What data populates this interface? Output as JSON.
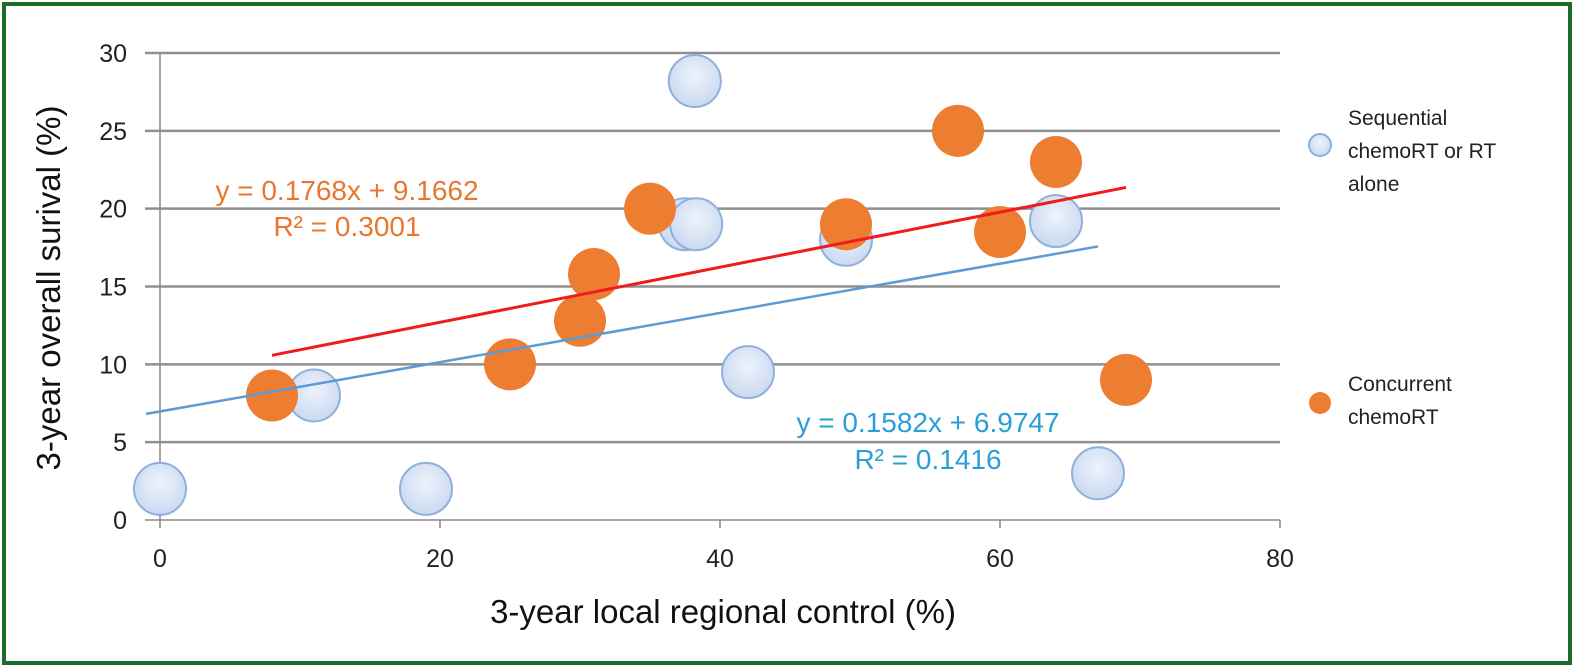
{
  "chart_data": {
    "type": "scatter",
    "xlabel": "3-year local regional control (%)",
    "ylabel": "3-year overall surival (%)",
    "xlim": [
      0,
      80
    ],
    "ylim": [
      0,
      30
    ],
    "x_ticks": [
      "0",
      "20",
      "40",
      "60",
      "80"
    ],
    "y_ticks": [
      "0",
      "5",
      "10",
      "15",
      "20",
      "25",
      "30"
    ],
    "grid": "horizontal",
    "legend_position": "right",
    "series": [
      {
        "name": "Sequential chemoRT or RT alone",
        "legend_lines": [
          "Sequential",
          "chemoRT or RT",
          "alone"
        ],
        "color": "#c9d9f0",
        "edge_color": "#8fb0dc",
        "points": [
          {
            "x": 0,
            "y": 2
          },
          {
            "x": 11,
            "y": 8
          },
          {
            "x": 19,
            "y": 2
          },
          {
            "x": 37.5,
            "y": 19
          },
          {
            "x": 38.2,
            "y": 28.2
          },
          {
            "x": 38.3,
            "y": 19
          },
          {
            "x": 42,
            "y": 9.5
          },
          {
            "x": 49,
            "y": 18
          },
          {
            "x": 64,
            "y": 19.2
          },
          {
            "x": 67,
            "y": 3
          }
        ],
        "trendline": {
          "slope": 0.1582,
          "intercept": 6.9747,
          "x_range": [
            -1,
            67
          ],
          "color": "#5b9bd5",
          "equation": "y = 0.1582x + 6.9747",
          "r_squared": "R² = 0.1416",
          "label_color": "#2a9fd6"
        }
      },
      {
        "name": "Concurrent chemoRT",
        "legend_lines": [
          "Concurrent",
          "chemoRT"
        ],
        "color": "#ed7d31",
        "points": [
          {
            "x": 8,
            "y": 8
          },
          {
            "x": 25,
            "y": 10
          },
          {
            "x": 30,
            "y": 12.8
          },
          {
            "x": 31,
            "y": 15.8
          },
          {
            "x": 35,
            "y": 20
          },
          {
            "x": 49,
            "y": 19
          },
          {
            "x": 57,
            "y": 25
          },
          {
            "x": 60,
            "y": 18.5
          },
          {
            "x": 64,
            "y": 23
          },
          {
            "x": 69,
            "y": 9
          }
        ],
        "trendline": {
          "slope": 0.1768,
          "intercept": 9.1662,
          "x_range": [
            8,
            69
          ],
          "color": "#ee1c1c",
          "equation": "y = 0.1768x + 9.1662",
          "r_squared": "R² = 0.3001",
          "label_color": "#e8772e"
        }
      }
    ]
  }
}
